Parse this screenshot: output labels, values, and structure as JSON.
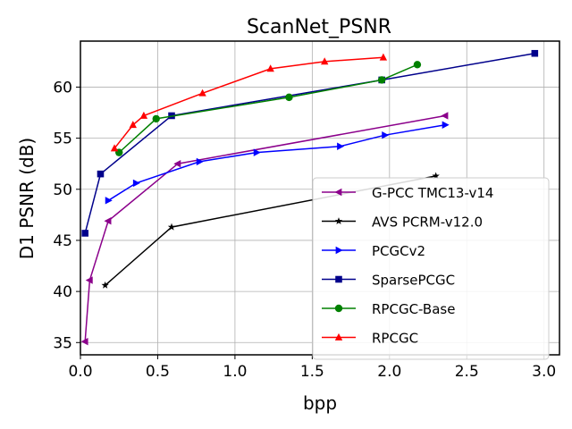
{
  "chart_data": {
    "type": "line",
    "title": "ScanNet_PSNR",
    "xlabel": "bpp",
    "ylabel": "D1 PSNR (dB)",
    "xlim": [
      0.0,
      3.1
    ],
    "ylim": [
      33.8,
      64.5
    ],
    "xticks": [
      0.0,
      0.5,
      1.0,
      1.5,
      2.0,
      2.5,
      3.0
    ],
    "xtick_labels": [
      "0.0",
      "0.5",
      "1.0",
      "1.5",
      "2.0",
      "2.5",
      "3.0"
    ],
    "yticks": [
      35,
      40,
      45,
      50,
      55,
      60
    ],
    "ytick_labels": [
      "35",
      "40",
      "45",
      "50",
      "55",
      "60"
    ],
    "grid": true,
    "legend_position": "lower-right",
    "series": [
      {
        "name": "G-PCC TMC13-v14",
        "color": "#8b008b",
        "marker": "triangle-left",
        "x": [
          0.03,
          0.06,
          0.18,
          0.63,
          2.36
        ],
        "y": [
          35.1,
          41.1,
          46.9,
          52.5,
          57.2
        ]
      },
      {
        "name": "AVS PCRM-v12.0",
        "color": "#000000",
        "marker": "star",
        "x": [
          0.16,
          0.59,
          2.3
        ],
        "y": [
          40.6,
          46.3,
          51.3
        ]
      },
      {
        "name": "PCGCv2",
        "color": "#0000ff",
        "marker": "triangle-right",
        "x": [
          0.18,
          0.36,
          0.77,
          1.14,
          1.68,
          1.97,
          2.36
        ],
        "y": [
          48.9,
          50.6,
          52.7,
          53.6,
          54.2,
          55.3,
          56.3
        ]
      },
      {
        "name": "SparsePCGC",
        "color": "#00008b",
        "marker": "square",
        "x": [
          0.03,
          0.13,
          0.59,
          1.95,
          2.94
        ],
        "y": [
          45.7,
          51.5,
          57.2,
          60.7,
          63.3
        ]
      },
      {
        "name": "RPCGC-Base",
        "color": "#008000",
        "marker": "circle",
        "x": [
          0.25,
          0.49,
          1.35,
          1.95,
          2.18
        ],
        "y": [
          53.6,
          56.9,
          59.0,
          60.7,
          62.2
        ]
      },
      {
        "name": "RPCGC",
        "color": "#ff0000",
        "marker": "triangle-up",
        "x": [
          0.22,
          0.34,
          0.41,
          0.79,
          1.23,
          1.58,
          1.96
        ],
        "y": [
          54.0,
          56.3,
          57.2,
          59.4,
          61.8,
          62.5,
          62.9
        ]
      }
    ]
  }
}
